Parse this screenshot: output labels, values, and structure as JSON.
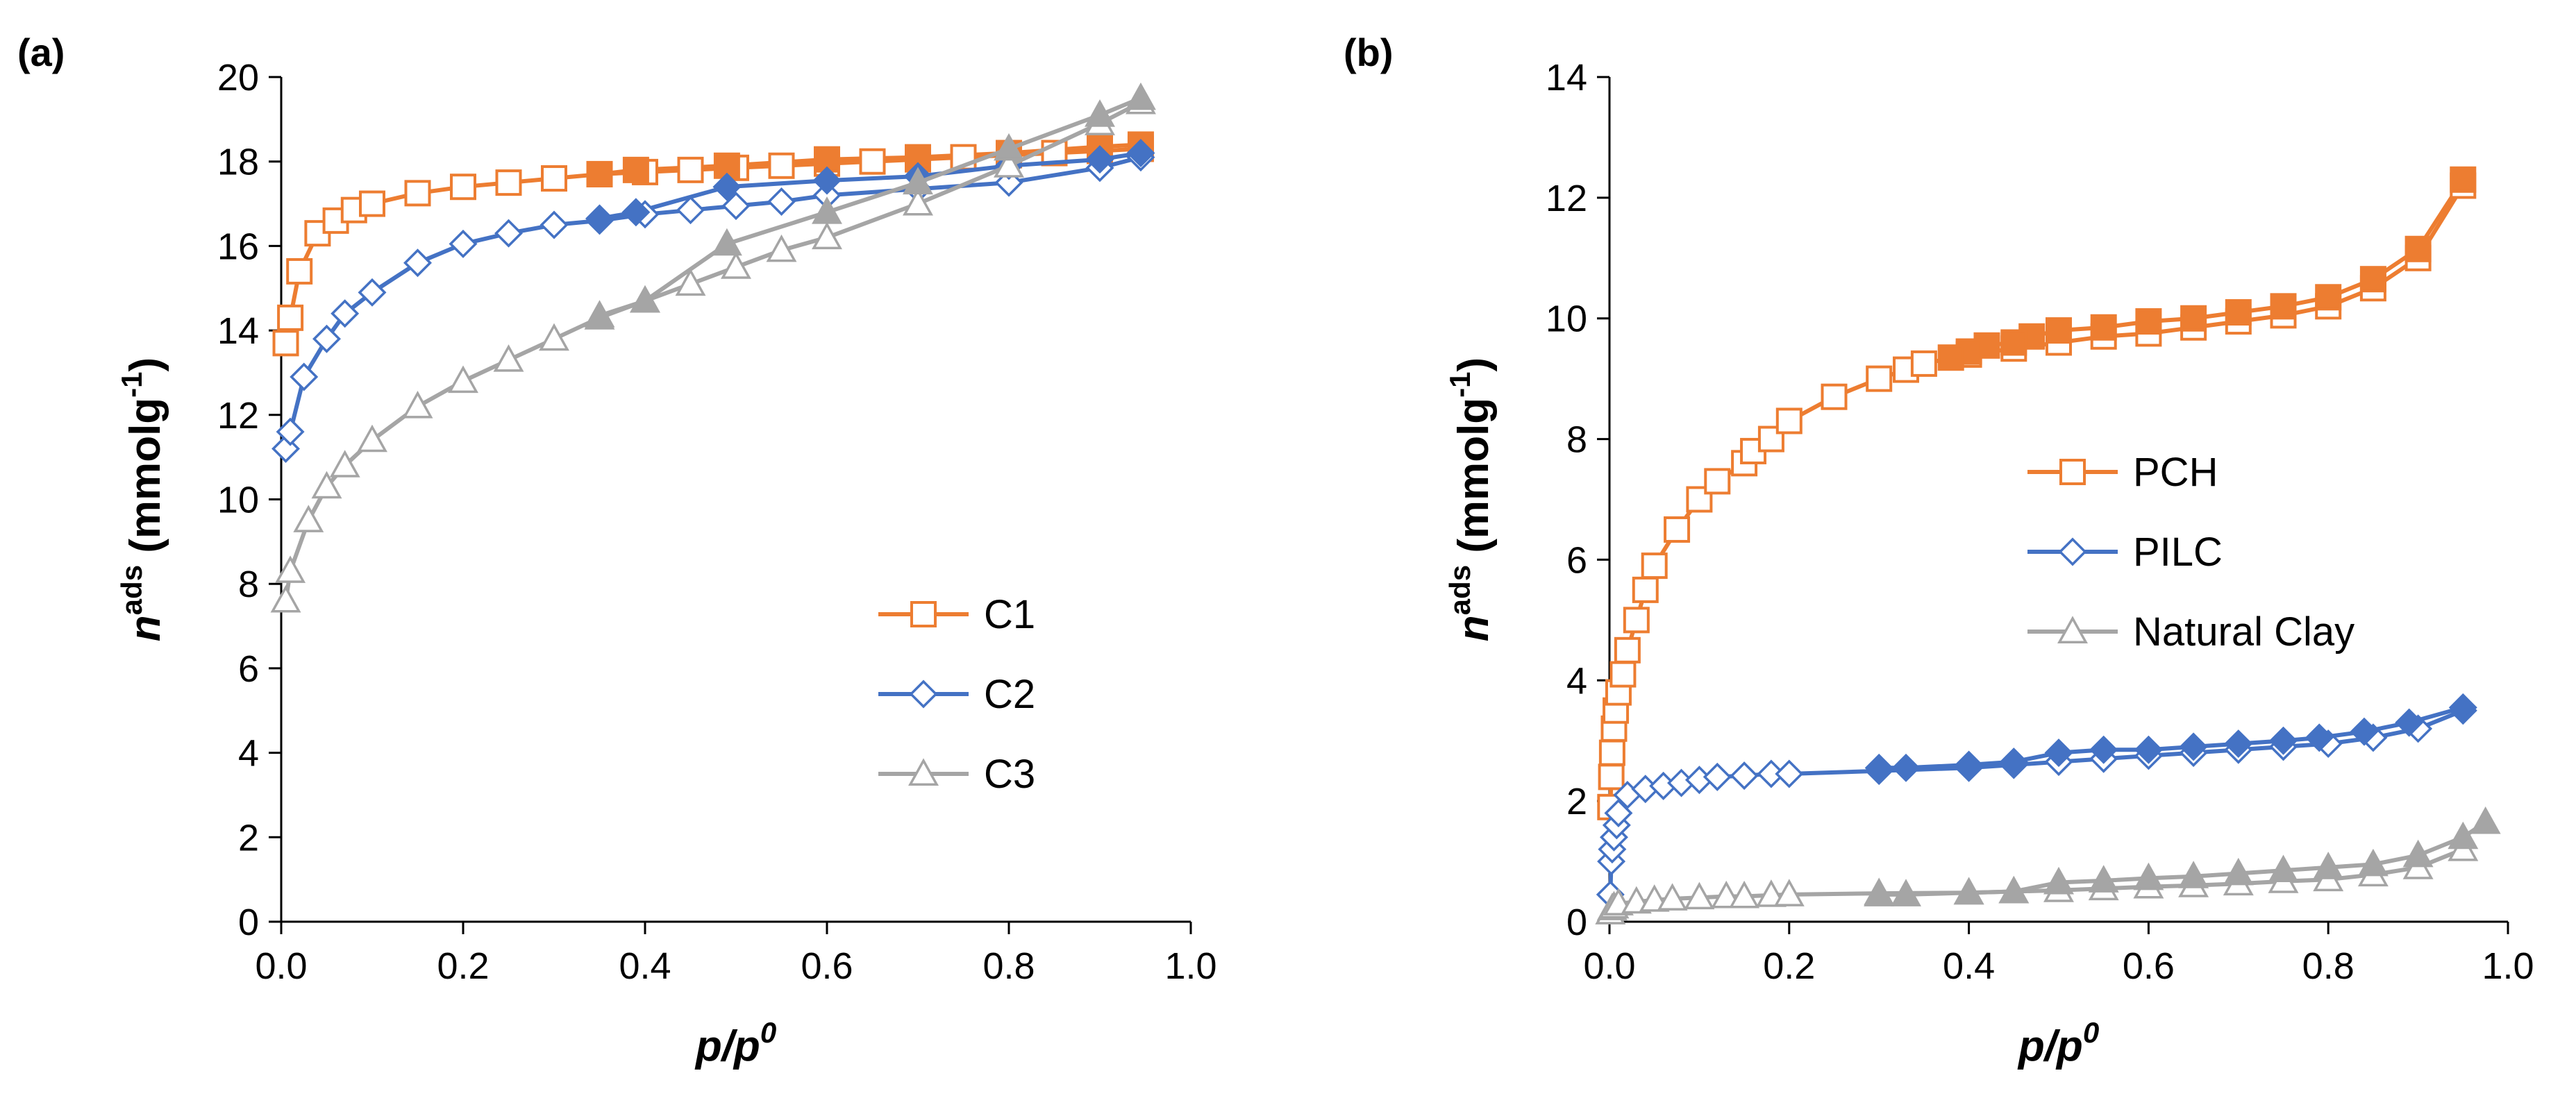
{
  "chart_data": [
    {
      "type": "line",
      "panel": "(a)",
      "xlabel": {
        "main": "p/p",
        "sup": "0"
      },
      "ylabel": {
        "main": "n",
        "sup": "ads",
        "rest": " (mmolg",
        "unit_sup": "-1",
        "close": ")"
      },
      "xlim": [
        0,
        1.0
      ],
      "ylim": [
        0,
        20
      ],
      "xticks": [
        "0.0",
        "0.2",
        "0.4",
        "0.6",
        "0.8",
        "1.0"
      ],
      "yticks": [
        "0",
        "2",
        "4",
        "6",
        "8",
        "10",
        "12",
        "14",
        "16",
        "18",
        "20"
      ],
      "grid": false,
      "legend_position": "bottom-right",
      "series": [
        {
          "name": "C1",
          "color": "#ED7D31",
          "marker": "square",
          "adsorption": {
            "x": [
              0.005,
              0.01,
              0.02,
              0.04,
              0.06,
              0.08,
              0.1,
              0.15,
              0.2,
              0.25,
              0.3,
              0.35,
              0.4,
              0.45,
              0.5,
              0.55,
              0.6,
              0.65,
              0.7,
              0.75,
              0.8,
              0.85,
              0.9,
              0.945
            ],
            "y": [
              13.7,
              14.3,
              15.4,
              16.3,
              16.6,
              16.85,
              17.0,
              17.25,
              17.4,
              17.5,
              17.6,
              17.7,
              17.75,
              17.8,
              17.85,
              17.9,
              17.95,
              18.0,
              18.05,
              18.1,
              18.15,
              18.2,
              18.25,
              18.3
            ]
          },
          "desorption": {
            "x": [
              0.945,
              0.9,
              0.8,
              0.7,
              0.6,
              0.49,
              0.39,
              0.35
            ],
            "y": [
              18.4,
              18.35,
              18.2,
              18.1,
              18.05,
              17.9,
              17.8,
              17.7
            ]
          }
        },
        {
          "name": "C2",
          "color": "#4472C4",
          "marker": "diamond",
          "adsorption": {
            "x": [
              0.005,
              0.01,
              0.025,
              0.05,
              0.07,
              0.1,
              0.15,
              0.2,
              0.25,
              0.3,
              0.35,
              0.4,
              0.45,
              0.5,
              0.55,
              0.6,
              0.7,
              0.8,
              0.9,
              0.945
            ],
            "y": [
              11.2,
              11.6,
              12.9,
              13.8,
              14.4,
              14.9,
              15.6,
              16.05,
              16.3,
              16.5,
              16.6,
              16.75,
              16.85,
              16.95,
              17.05,
              17.2,
              17.35,
              17.5,
              17.85,
              18.1
            ]
          },
          "desorption": {
            "x": [
              0.945,
              0.9,
              0.8,
              0.7,
              0.6,
              0.49,
              0.39,
              0.35
            ],
            "y": [
              18.2,
              18.05,
              17.9,
              17.65,
              17.55,
              17.4,
              16.8,
              16.65
            ]
          }
        },
        {
          "name": "C3",
          "color": "#A5A5A5",
          "marker": "triangle",
          "adsorption": {
            "x": [
              0.005,
              0.01,
              0.03,
              0.05,
              0.07,
              0.1,
              0.15,
              0.2,
              0.25,
              0.3,
              0.35,
              0.4,
              0.45,
              0.5,
              0.55,
              0.6,
              0.7,
              0.8,
              0.9,
              0.945
            ],
            "y": [
              7.6,
              8.3,
              9.5,
              10.3,
              10.8,
              11.4,
              12.2,
              12.8,
              13.3,
              13.8,
              14.3,
              14.7,
              15.1,
              15.5,
              15.9,
              16.2,
              17.0,
              17.9,
              18.9,
              19.4
            ]
          },
          "desorption": {
            "x": [
              0.945,
              0.9,
              0.8,
              0.7,
              0.6,
              0.49,
              0.4,
              0.35
            ],
            "y": [
              19.5,
              19.1,
              18.3,
              17.5,
              16.8,
              16.05,
              14.7,
              14.35
            ]
          }
        }
      ]
    },
    {
      "type": "line",
      "panel": "(b)",
      "xlabel": {
        "main": "p/p",
        "sup": "0"
      },
      "ylabel": {
        "main": "n",
        "sup": "ads",
        "rest": " (mmolg",
        "unit_sup": "-1",
        "close": ")"
      },
      "xlim": [
        0,
        1.0
      ],
      "ylim": [
        0,
        14
      ],
      "xticks": [
        "0.0",
        "0.2",
        "0.4",
        "0.6",
        "0.8",
        "1.0"
      ],
      "yticks": [
        "0",
        "2",
        "4",
        "6",
        "8",
        "10",
        "12",
        "14"
      ],
      "grid": false,
      "legend_position": "center-right",
      "series": [
        {
          "name": "PCH",
          "color": "#ED7D31",
          "marker": "square",
          "adsorption": {
            "x": [
              0.001,
              0.002,
              0.003,
              0.005,
              0.007,
              0.01,
              0.015,
              0.02,
              0.03,
              0.04,
              0.05,
              0.075,
              0.1,
              0.12,
              0.15,
              0.16,
              0.18,
              0.2,
              0.25,
              0.3,
              0.33,
              0.35,
              0.4,
              0.45,
              0.5,
              0.55,
              0.6,
              0.65,
              0.7,
              0.75,
              0.8,
              0.85,
              0.9,
              0.95
            ],
            "y": [
              1.9,
              2.4,
              2.8,
              3.2,
              3.5,
              3.8,
              4.1,
              4.5,
              5.0,
              5.5,
              5.9,
              6.5,
              7.0,
              7.3,
              7.6,
              7.8,
              8.0,
              8.3,
              8.7,
              9.0,
              9.15,
              9.25,
              9.4,
              9.5,
              9.6,
              9.7,
              9.75,
              9.85,
              9.95,
              10.05,
              10.2,
              10.5,
              11.0,
              12.2
            ]
          },
          "desorption": {
            "x": [
              0.95,
              0.9,
              0.85,
              0.8,
              0.75,
              0.7,
              0.65,
              0.6,
              0.55,
              0.5,
              0.47,
              0.45,
              0.42,
              0.4,
              0.38
            ],
            "y": [
              12.3,
              11.15,
              10.65,
              10.35,
              10.2,
              10.1,
              10.0,
              9.95,
              9.85,
              9.8,
              9.7,
              9.6,
              9.55,
              9.45,
              9.35
            ]
          }
        },
        {
          "name": "PILC",
          "color": "#4472C4",
          "marker": "diamond",
          "adsorption": {
            "x": [
              0.001,
              0.002,
              0.003,
              0.005,
              0.008,
              0.01,
              0.02,
              0.04,
              0.06,
              0.08,
              0.1,
              0.12,
              0.15,
              0.18,
              0.2,
              0.3,
              0.4,
              0.45,
              0.5,
              0.55,
              0.6,
              0.65,
              0.7,
              0.75,
              0.8,
              0.85,
              0.9,
              0.95
            ],
            "y": [
              0.45,
              1.0,
              1.2,
              1.4,
              1.6,
              1.8,
              2.1,
              2.2,
              2.25,
              2.3,
              2.35,
              2.4,
              2.42,
              2.45,
              2.45,
              2.5,
              2.55,
              2.6,
              2.65,
              2.7,
              2.75,
              2.8,
              2.85,
              2.9,
              2.95,
              3.05,
              3.2,
              3.5
            ]
          },
          "desorption": {
            "x": [
              0.95,
              0.89,
              0.84,
              0.79,
              0.75,
              0.7,
              0.65,
              0.6,
              0.55,
              0.5,
              0.45,
              0.4,
              0.33,
              0.3
            ],
            "y": [
              3.55,
              3.3,
              3.15,
              3.05,
              3.0,
              2.95,
              2.9,
              2.85,
              2.85,
              2.8,
              2.65,
              2.6,
              2.55,
              2.55
            ]
          }
        },
        {
          "name": "Natural Clay",
          "color": "#A5A5A5",
          "marker": "triangle",
          "adsorption": {
            "x": [
              0.001,
              0.003,
              0.005,
              0.01,
              0.03,
              0.05,
              0.07,
              0.1,
              0.13,
              0.15,
              0.18,
              0.2,
              0.3,
              0.4,
              0.45,
              0.5,
              0.55,
              0.6,
              0.65,
              0.7,
              0.75,
              0.8,
              0.85,
              0.9,
              0.95
            ],
            "y": [
              0.15,
              0.22,
              0.25,
              0.3,
              0.33,
              0.36,
              0.38,
              0.4,
              0.42,
              0.42,
              0.44,
              0.45,
              0.47,
              0.48,
              0.5,
              0.52,
              0.55,
              0.58,
              0.6,
              0.63,
              0.67,
              0.7,
              0.78,
              0.9,
              1.2
            ]
          },
          "desorption": {
            "x": [
              0.975,
              0.95,
              0.9,
              0.85,
              0.8,
              0.75,
              0.7,
              0.65,
              0.6,
              0.55,
              0.5,
              0.45,
              0.4,
              0.33,
              0.3
            ],
            "y": [
              1.65,
              1.4,
              1.1,
              0.95,
              0.9,
              0.85,
              0.8,
              0.75,
              0.72,
              0.68,
              0.65,
              0.5,
              0.48,
              0.45,
              0.45
            ]
          }
        }
      ]
    }
  ]
}
